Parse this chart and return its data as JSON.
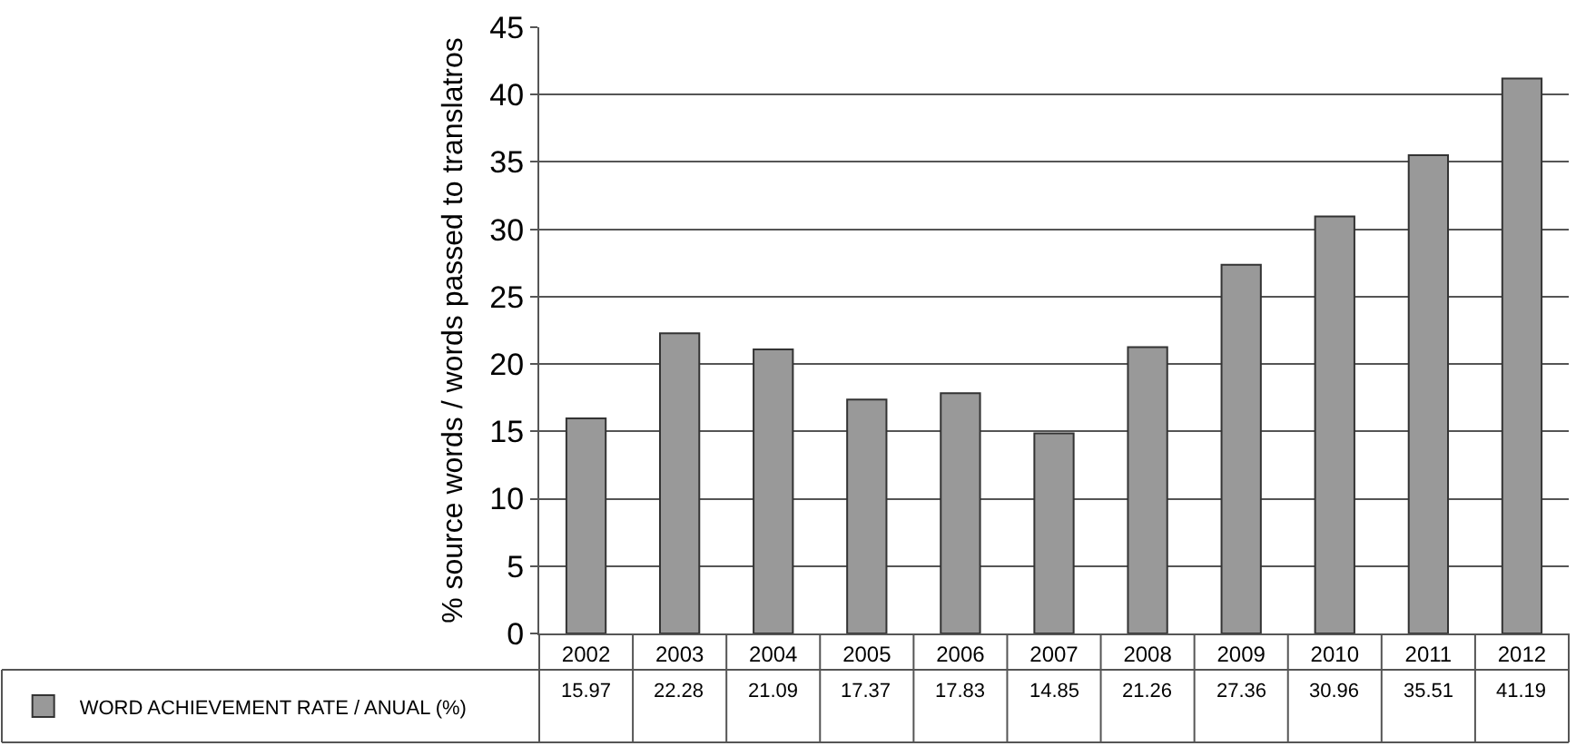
{
  "chart_data": {
    "type": "bar",
    "ylabel": "% source words / words passed to translatros",
    "categories": [
      "2002",
      "2003",
      "2004",
      "2005",
      "2006",
      "2007",
      "2008",
      "2009",
      "2010",
      "2011",
      "2012"
    ],
    "series": [
      {
        "name": "WORD ACHIEVEMENT RATE / ANUAL (%)",
        "color": "#999999",
        "values": [
          15.97,
          22.28,
          21.09,
          17.37,
          17.83,
          14.85,
          21.26,
          27.36,
          30.96,
          35.51,
          41.19
        ]
      }
    ],
    "ylim": [
      0,
      45
    ],
    "yticks": [
      0,
      5,
      10,
      15,
      20,
      25,
      30,
      35,
      40,
      45
    ],
    "grid": "y",
    "legend": "bottom left",
    "data_labels": true
  }
}
